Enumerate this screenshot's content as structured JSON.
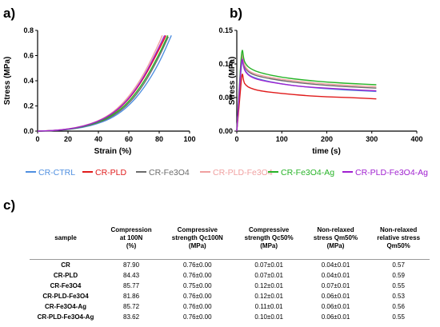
{
  "panels": {
    "a": "a)",
    "b": "b)",
    "c": "c)"
  },
  "chart_data": [
    {
      "type": "line",
      "panel": "a)",
      "xlabel": "Strain (%)",
      "ylabel": "Stress (MPa)",
      "xlim": [
        0,
        100
      ],
      "ylim": [
        0,
        0.8
      ],
      "xticks": [
        "0",
        "20",
        "40",
        "60",
        "80",
        "100"
      ],
      "yticks": [
        "0.0",
        "0.2",
        "0.4",
        "0.6",
        "0.8"
      ],
      "series": [
        {
          "name": "CR-CTRL",
          "color": "#4f8fe0",
          "x": [
            0,
            10,
            20,
            30,
            40,
            50,
            60,
            70,
            80,
            88
          ],
          "y": [
            0,
            0.003,
            0.012,
            0.03,
            0.06,
            0.11,
            0.2,
            0.34,
            0.54,
            0.76
          ]
        },
        {
          "name": "CR-PLD",
          "color": "#e01b1b",
          "x": [
            0,
            10,
            20,
            30,
            40,
            50,
            60,
            70,
            80,
            84.5
          ],
          "y": [
            0,
            0.004,
            0.015,
            0.037,
            0.075,
            0.14,
            0.25,
            0.42,
            0.65,
            0.76
          ]
        },
        {
          "name": "CR-Fe3O4",
          "color": "#6b6b6b",
          "x": [
            0,
            10,
            20,
            30,
            40,
            50,
            60,
            70,
            80,
            86
          ],
          "y": [
            0,
            0.003,
            0.013,
            0.033,
            0.066,
            0.12,
            0.215,
            0.37,
            0.59,
            0.75
          ]
        },
        {
          "name": "CR-PLD-Fe3O4",
          "color": "#f0a0a0",
          "x": [
            0,
            10,
            20,
            30,
            40,
            50,
            60,
            70,
            80,
            82
          ],
          "y": [
            0,
            0.004,
            0.016,
            0.04,
            0.08,
            0.15,
            0.27,
            0.45,
            0.7,
            0.76
          ]
        },
        {
          "name": "CR-Fe3O4-Ag",
          "color": "#27b327",
          "x": [
            0,
            10,
            20,
            30,
            40,
            50,
            60,
            70,
            80,
            85.7
          ],
          "y": [
            0,
            0.003,
            0.014,
            0.035,
            0.07,
            0.13,
            0.23,
            0.39,
            0.61,
            0.76
          ]
        },
        {
          "name": "CR-PLD-Fe3O4-Ag",
          "color": "#a020d0",
          "x": [
            0,
            10,
            20,
            30,
            40,
            50,
            60,
            70,
            80,
            83.6
          ],
          "y": [
            0,
            0.004,
            0.015,
            0.038,
            0.077,
            0.143,
            0.255,
            0.43,
            0.67,
            0.76
          ]
        }
      ]
    },
    {
      "type": "line",
      "panel": "b)",
      "xlabel": "time (s)",
      "ylabel": "Stress (MPa)",
      "xlim": [
        0,
        400
      ],
      "ylim": [
        0,
        0.15
      ],
      "xticks": [
        "0",
        "100",
        "200",
        "300",
        "400"
      ],
      "yticks": [
        "0.00",
        "0.05",
        "0.10",
        "0.15"
      ],
      "series": [
        {
          "name": "CR-CTRL",
          "color": "#4f8fe0",
          "x": [
            0,
            8,
            12,
            15,
            20,
            30,
            50,
            100,
            150,
            200,
            250,
            310
          ],
          "y": [
            0,
            0.08,
            0.108,
            0.097,
            0.088,
            0.082,
            0.077,
            0.07,
            0.066,
            0.063,
            0.061,
            0.059
          ]
        },
        {
          "name": "CR-PLD",
          "color": "#e01b1b",
          "x": [
            0,
            8,
            12,
            15,
            20,
            30,
            50,
            100,
            150,
            200,
            250,
            310
          ],
          "y": [
            0,
            0.06,
            0.09,
            0.074,
            0.068,
            0.064,
            0.06,
            0.056,
            0.053,
            0.051,
            0.05,
            0.048
          ]
        },
        {
          "name": "CR-Fe3O4",
          "color": "#6b6b6b",
          "x": [
            0,
            8,
            12,
            15,
            20,
            30,
            50,
            100,
            150,
            200,
            250,
            310
          ],
          "y": [
            0,
            0.085,
            0.116,
            0.1,
            0.092,
            0.086,
            0.081,
            0.075,
            0.071,
            0.068,
            0.066,
            0.064
          ]
        },
        {
          "name": "CR-PLD-Fe3O4",
          "color": "#f0a0a0",
          "x": [
            0,
            8,
            12,
            15,
            20,
            30,
            50,
            100,
            150,
            200,
            250,
            310
          ],
          "y": [
            0,
            0.09,
            0.12,
            0.103,
            0.094,
            0.088,
            0.083,
            0.077,
            0.073,
            0.07,
            0.068,
            0.066
          ]
        },
        {
          "name": "CR-Fe3O4-Ag",
          "color": "#27b327",
          "x": [
            0,
            8,
            12,
            15,
            20,
            30,
            50,
            100,
            150,
            200,
            250,
            310
          ],
          "y": [
            0,
            0.095,
            0.126,
            0.108,
            0.099,
            0.093,
            0.087,
            0.08,
            0.076,
            0.073,
            0.071,
            0.069
          ]
        },
        {
          "name": "CR-PLD-Fe3O4-Ag",
          "color": "#a020d0",
          "x": [
            0,
            8,
            12,
            15,
            20,
            30,
            50,
            100,
            150,
            200,
            250,
            310
          ],
          "y": [
            0,
            0.088,
            0.112,
            0.095,
            0.087,
            0.081,
            0.076,
            0.07,
            0.066,
            0.064,
            0.062,
            0.06
          ]
        }
      ]
    },
    {
      "type": "table",
      "panel": "c)",
      "columns": [
        "sample",
        "Compression at 100N (%)",
        "Compressive strength Qc100N (MPa)",
        "Compressive strength Qc50% (MPa)",
        "Non-relaxed stress Qm50% (MPa)",
        "Non-relaxed relative stress Qm50%"
      ],
      "rows": [
        [
          "CR",
          "87.90",
          "0.76±0.00",
          "0.07±0.01",
          "0.04±0.01",
          "0.57"
        ],
        [
          "CR-PLD",
          "84.43",
          "0.76±0.00",
          "0.07±0.01",
          "0.04±0.01",
          "0.59"
        ],
        [
          "CR-Fe3O4",
          "85.77",
          "0.75±0.00",
          "0.12±0.01",
          "0.07±0.01",
          "0.55"
        ],
        [
          "CR-PLD-Fe3O4",
          "81.86",
          "0.76±0.00",
          "0.12±0.01",
          "0.06±0.01",
          "0.53"
        ],
        [
          "CR-Fe3O4-Ag",
          "85.72",
          "0.76±0.00",
          "0.11±0.01",
          "0.06±0.01",
          "0.56"
        ],
        [
          "CR-PLD-Fe3O4-Ag",
          "83.62",
          "0.76±0.00",
          "0.10±0.01",
          "0.06±0.01",
          "0.55"
        ]
      ]
    }
  ],
  "legend": [
    {
      "label": "CR-CTRL",
      "color": "#4f8fe0"
    },
    {
      "label": "CR-PLD",
      "color": "#e01b1b"
    },
    {
      "label": "CR-Fe3O4",
      "color": "#6b6b6b"
    },
    {
      "label": "CR-PLD-Fe3O4",
      "color": "#f0a0a0"
    },
    {
      "label": "CR-Fe3O4-Ag",
      "color": "#27b327"
    },
    {
      "label": "CR-PLD-Fe3O4-Ag",
      "color": "#a020d0"
    }
  ],
  "table": {
    "header": {
      "sample": "sample",
      "compression": [
        "Compression",
        "at 100N",
        "(%)"
      ],
      "qc100": [
        "Compressive",
        "strength Qc100N",
        "(MPa)"
      ],
      "qc50": [
        "Compressive",
        "strength Qc50%",
        "(MPa)"
      ],
      "qm50": [
        "Non-relaxed",
        "stress Qm50%",
        "(MPa)"
      ],
      "qrel": [
        "Non-relaxed",
        "relative stress",
        "Qm50%"
      ]
    }
  }
}
